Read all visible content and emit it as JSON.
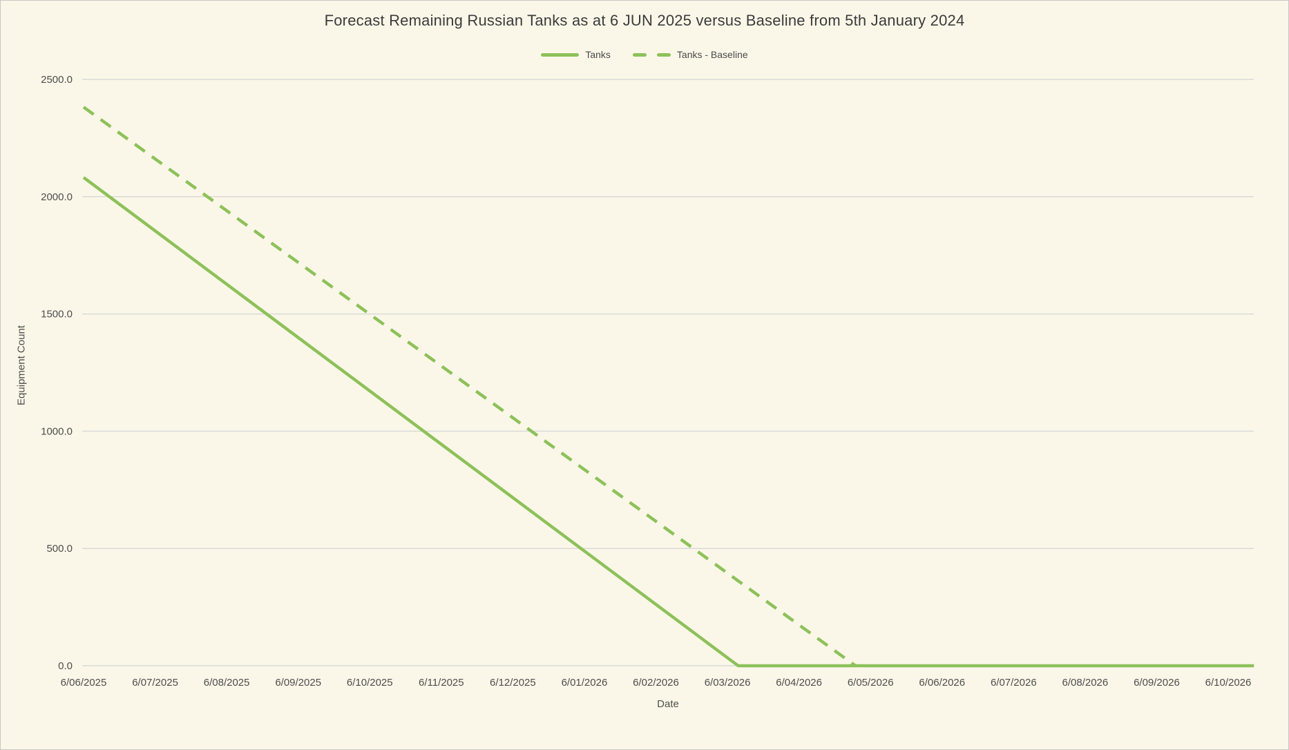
{
  "chart": {
    "title": "Forecast Remaining Russian Tanks as at 6 JUN 2025 versus Baseline from 5th January 2024",
    "xlabel": "Date",
    "ylabel": "Equipment Count"
  },
  "legend": {
    "items": [
      {
        "label": "Tanks",
        "style": "solid"
      },
      {
        "label": "Tanks - Baseline",
        "style": "dashed"
      }
    ]
  },
  "colors": {
    "background": "#FBF7E8",
    "line_green": "#8DC15A",
    "gridline": "#D9D9D9",
    "tick_text": "#4d4d4d",
    "title_text": "#3b3b3b",
    "border": "#c6c6c6"
  },
  "chart_data": {
    "type": "line",
    "title": "Forecast Remaining Russian Tanks as at 6 JUN 2025 versus Baseline from 5th January 2024",
    "xlabel": "Date",
    "ylabel": "Equipment Count",
    "categories": [
      "6/06/2025",
      "6/07/2025",
      "6/08/2025",
      "6/09/2025",
      "6/10/2025",
      "6/11/2025",
      "6/12/2025",
      "6/01/2026",
      "6/02/2026",
      "6/03/2026",
      "6/04/2026",
      "6/05/2026",
      "6/06/2026",
      "6/07/2026",
      "6/08/2026",
      "6/09/2026",
      "6/10/2026"
    ],
    "ylim": [
      0,
      2500
    ],
    "ytick_labels": [
      "0.0",
      "500.0",
      "1000.0",
      "1500.0",
      "2000.0",
      "2500.0"
    ],
    "grid": "horizontal-only",
    "legend_position": "top-center",
    "series": [
      {
        "name": "Tanks",
        "style": "solid",
        "color": "#8DC15A",
        "values": [
          2082,
          1855,
          1627,
          1400,
          1172,
          945,
          717,
          490,
          262,
          35,
          0,
          0,
          0,
          0,
          0,
          0,
          0
        ],
        "breakpoints": [
          {
            "x": 0,
            "y": 2082
          },
          {
            "x": 9.15,
            "y": 0
          },
          {
            "x": 16.36,
            "y": 0
          }
        ]
      },
      {
        "name": "Tanks - Baseline",
        "style": "dashed",
        "color": "#8DC15A",
        "values": [
          2382,
          2161,
          1940,
          1719,
          1499,
          1278,
          1057,
          836,
          615,
          394,
          173,
          0,
          0,
          0,
          0,
          0,
          0
        ],
        "breakpoints": [
          {
            "x": 0,
            "y": 2382
          },
          {
            "x": 10.79,
            "y": 0
          }
        ]
      }
    ]
  }
}
